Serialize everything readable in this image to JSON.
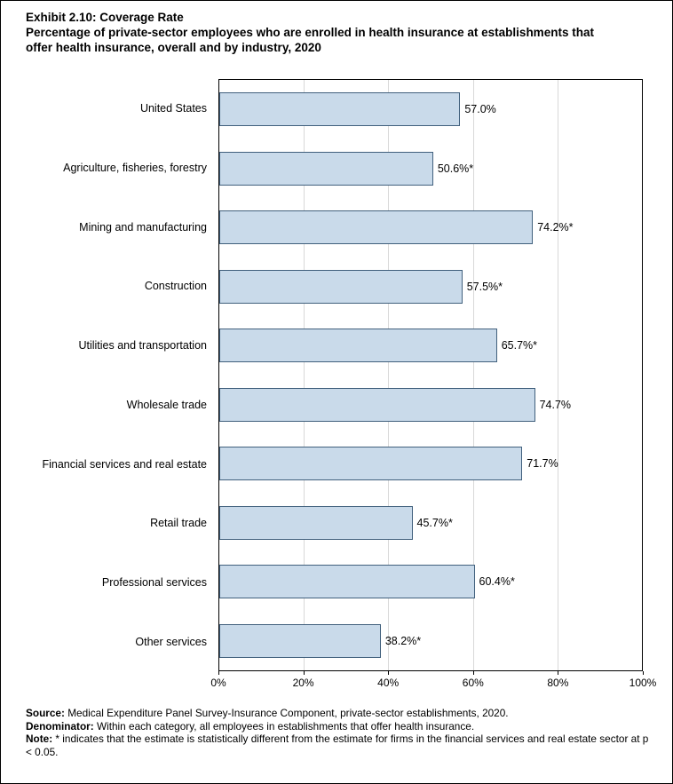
{
  "header": {
    "title": "Exhibit 2.10: Coverage Rate",
    "subtitle": "Percentage of private-sector employees who are enrolled in health insurance at establishments that offer health insurance, overall and by industry, 2020"
  },
  "chart_data": {
    "type": "bar",
    "orientation": "horizontal",
    "title": "Exhibit 2.10: Coverage Rate",
    "categories": [
      "United States",
      "Agriculture, fisheries, forestry",
      "Mining and manufacturing",
      "Construction",
      "Utilities and transportation",
      "Wholesale trade",
      "Financial services and real estate",
      "Retail trade",
      "Professional services",
      "Other services"
    ],
    "values": [
      57.0,
      50.6,
      74.2,
      57.5,
      65.7,
      74.7,
      71.7,
      45.7,
      60.4,
      38.2
    ],
    "value_labels": [
      "57.0%",
      "50.6%*",
      "74.2%*",
      "57.5%*",
      "65.7%*",
      "74.7%",
      "71.7%",
      "45.7%*",
      "60.4%*",
      "38.2%*"
    ],
    "xlim": [
      0,
      100
    ],
    "x_tick_positions": [
      0,
      20,
      40,
      60,
      80,
      100
    ],
    "x_tick_labels": [
      "0%",
      "20%",
      "40%",
      "60%",
      "80%",
      "100%"
    ],
    "grid": true,
    "gridline_positions": [
      20,
      40,
      60,
      80
    ],
    "bar_fill": "#c9daea",
    "bar_stroke": "#41607d",
    "grid_color": "#d9d9d9",
    "legend": "none"
  },
  "notes": {
    "source_label": "Source:",
    "source_text": " Medical Expenditure Panel Survey-Insurance Component, private-sector establishments, 2020.",
    "denominator_label": "Denominator:",
    "denominator_text": " Within each category, all employees in establishments that offer health insurance.",
    "note_label": "Note:",
    "note_text": " * indicates that the estimate is statistically different from the estimate for firms in the financial services and real estate sector at p < 0.05."
  }
}
